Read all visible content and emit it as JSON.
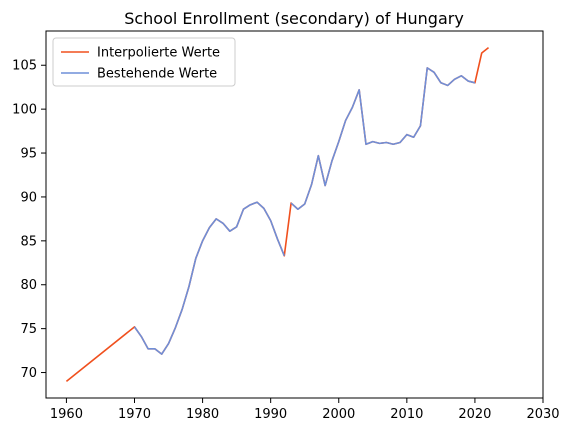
{
  "chart_data": {
    "type": "line",
    "title": "School Enrollment (secondary) of Hungary",
    "xlabel": "",
    "ylabel": "",
    "xlim": [
      1957,
      2030
    ],
    "ylim": [
      67.1,
      108.9
    ],
    "xticks": [
      1960,
      1970,
      1980,
      1990,
      2000,
      2010,
      2020,
      2030
    ],
    "yticks": [
      70,
      75,
      80,
      85,
      90,
      95,
      100,
      105
    ],
    "grid": false,
    "legend_position": "top-left",
    "series": [
      {
        "name": "Interpolierte Werte",
        "color": "#f0501e",
        "x": [
          1960,
          1970,
          1971,
          1972,
          1973,
          1974,
          1975,
          1976,
          1977,
          1978,
          1979,
          1980,
          1981,
          1982,
          1983,
          1984,
          1985,
          1986,
          1987,
          1988,
          1989,
          1990,
          1991,
          1992,
          1993,
          1994,
          1995,
          1996,
          1997,
          1998,
          1999,
          2000,
          2001,
          2002,
          2003,
          2004,
          2005,
          2006,
          2007,
          2008,
          2009,
          2010,
          2011,
          2012,
          2013,
          2014,
          2015,
          2016,
          2017,
          2018,
          2019,
          2020,
          2021,
          2022
        ],
        "y": [
          69.0,
          75.2,
          74.1,
          72.7,
          72.7,
          72.1,
          73.3,
          75.1,
          77.2,
          79.8,
          83.0,
          85.0,
          86.5,
          87.5,
          87.0,
          86.1,
          86.6,
          88.6,
          89.1,
          89.4,
          88.7,
          87.3,
          85.2,
          83.3,
          89.3,
          88.6,
          89.2,
          91.4,
          94.7,
          91.3,
          94.1,
          96.3,
          98.7,
          100.2,
          102.2,
          96.0,
          96.3,
          96.1,
          96.2,
          96.0,
          96.2,
          97.1,
          96.8,
          98.1,
          104.7,
          104.2,
          103.0,
          102.7,
          103.4,
          103.8,
          103.2,
          103.0,
          106.4,
          107.0
        ]
      },
      {
        "name": "Bestehende Werte",
        "color": "#6f8fd8",
        "x": [
          1970,
          1971,
          1972,
          1973,
          1974,
          1975,
          1976,
          1977,
          1978,
          1979,
          1980,
          1981,
          1982,
          1983,
          1984,
          1985,
          1986,
          1987,
          1988,
          1989,
          1990,
          1991,
          1992,
          null,
          1993,
          1994,
          1995,
          1996,
          1997,
          1998,
          1999,
          2000,
          2001,
          2002,
          2003,
          2004,
          2005,
          2006,
          2007,
          2008,
          2009,
          2010,
          2011,
          2012,
          2013,
          2014,
          2015,
          2016,
          2017,
          2018,
          2019,
          2020
        ],
        "y": [
          75.2,
          74.1,
          72.7,
          72.7,
          72.1,
          73.3,
          75.1,
          77.2,
          79.8,
          83.0,
          85.0,
          86.5,
          87.5,
          87.0,
          86.1,
          86.6,
          88.6,
          89.1,
          89.4,
          88.7,
          87.3,
          85.2,
          83.3,
          null,
          89.3,
          88.6,
          89.2,
          91.4,
          94.7,
          91.3,
          94.1,
          96.3,
          98.7,
          100.2,
          102.2,
          96.0,
          96.3,
          96.1,
          96.2,
          96.0,
          96.2,
          97.1,
          96.8,
          98.1,
          104.7,
          104.2,
          103.0,
          102.7,
          103.4,
          103.8,
          103.2,
          103.0
        ]
      }
    ]
  }
}
